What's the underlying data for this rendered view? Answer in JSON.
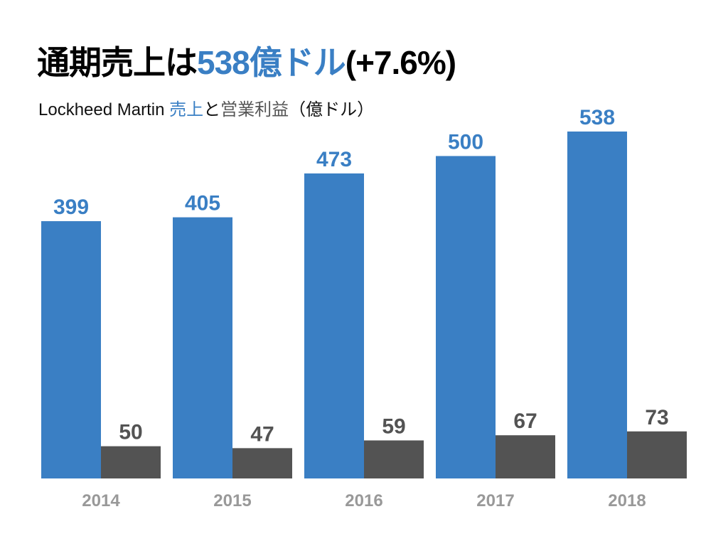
{
  "title": {
    "prefix": "通期売上は",
    "highlight": "538億ドル",
    "suffix": "(+7.6%)"
  },
  "subtitle": {
    "company": "Lockheed Martin ",
    "series1": "売上",
    "conj": "と",
    "series2": "営業利益",
    "unit": "（億ドル）"
  },
  "colors": {
    "sales": "#3a7fc4",
    "profit": "#535353",
    "year_label": "#999999"
  },
  "chart_data": {
    "type": "bar",
    "title": "通期売上は538億ドル(+7.6%)",
    "subtitle": "Lockheed Martin 売上と営業利益（億ドル）",
    "categories": [
      "2014",
      "2015",
      "2016",
      "2017",
      "2018"
    ],
    "series": [
      {
        "name": "売上",
        "values": [
          399,
          405,
          473,
          500,
          538
        ]
      },
      {
        "name": "営業利益",
        "values": [
          50,
          47,
          59,
          67,
          73
        ]
      }
    ],
    "xlabel": "",
    "ylabel": "億ドル",
    "ylim": [
      0,
      538
    ],
    "grid": false,
    "legend": "none"
  }
}
